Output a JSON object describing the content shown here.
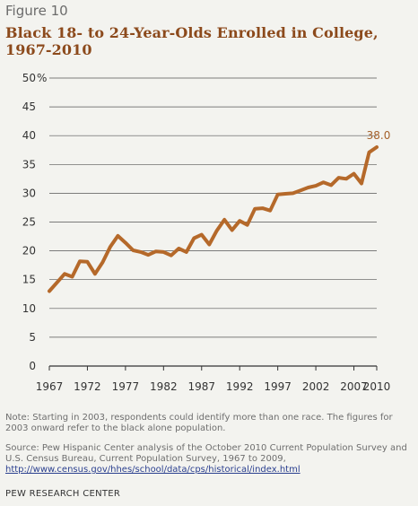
{
  "figure_label": "Figure 10",
  "title": "Black 18- to 24-Year-Olds Enrolled in College, 1967-2010",
  "note": "Note: Starting in 2003, respondents could identify more than one race. The figures for 2003 onward refer to the black alone population.",
  "source_text": "Source: Pew Hispanic Center analysis of the October 2010 Current Population Survey and U.S. Census Bureau, Current Population Survey, 1967 to 2009,",
  "source_url": "http://www.census.gov/hhes/school/data/cps/historical/index.html",
  "organization": "PEW RESEARCH CENTER",
  "colors": {
    "line": "#b5692a",
    "annotation": "#a5612b",
    "title": "#8c4a1c",
    "gridline": "#555555"
  },
  "chart_data": {
    "type": "line",
    "title": "Black 18- to 24-Year-Olds Enrolled in College, 1967-2010",
    "xlabel": "",
    "ylabel": "",
    "y_unit_label": "%",
    "xlim": [
      1967,
      2010
    ],
    "ylim": [
      0,
      50
    ],
    "grid": true,
    "x_ticks": [
      "1967",
      "1972",
      "1977",
      "1982",
      "1987",
      "1992",
      "1997",
      "2002",
      "2007",
      "2010"
    ],
    "y_ticks": [
      "0",
      "5",
      "10",
      "15",
      "20",
      "25",
      "30",
      "35",
      "40",
      "45",
      "50"
    ],
    "annotation": {
      "text": "38.0",
      "x": 2010,
      "y": 38.0
    },
    "series": [
      {
        "x": [
          1967,
          1968,
          1969,
          1970,
          1971,
          1972,
          1973,
          1974,
          1975,
          1976,
          1977,
          1978,
          1979,
          1980,
          1981,
          1982,
          1983,
          1984,
          1985,
          1986,
          1987,
          1988,
          1989,
          1990,
          1991,
          1992,
          1993,
          1994,
          1995,
          1996,
          1997,
          1998,
          1999,
          2000,
          2001,
          2002,
          2003,
          2004,
          2005,
          2006,
          2007,
          2008,
          2009,
          2010
        ],
        "values": [
          13.0,
          14.5,
          16.0,
          15.5,
          18.2,
          18.1,
          16.0,
          18.0,
          20.7,
          22.6,
          21.4,
          20.1,
          19.8,
          19.3,
          19.9,
          19.8,
          19.2,
          20.4,
          19.8,
          22.2,
          22.8,
          21.1,
          23.5,
          25.4,
          23.6,
          25.2,
          24.5,
          27.3,
          27.4,
          27.0,
          29.8,
          29.9,
          30.0,
          30.5,
          31.0,
          31.3,
          31.9,
          31.4,
          32.7,
          32.5,
          33.4,
          31.7,
          37.1,
          38.0
        ]
      }
    ]
  }
}
